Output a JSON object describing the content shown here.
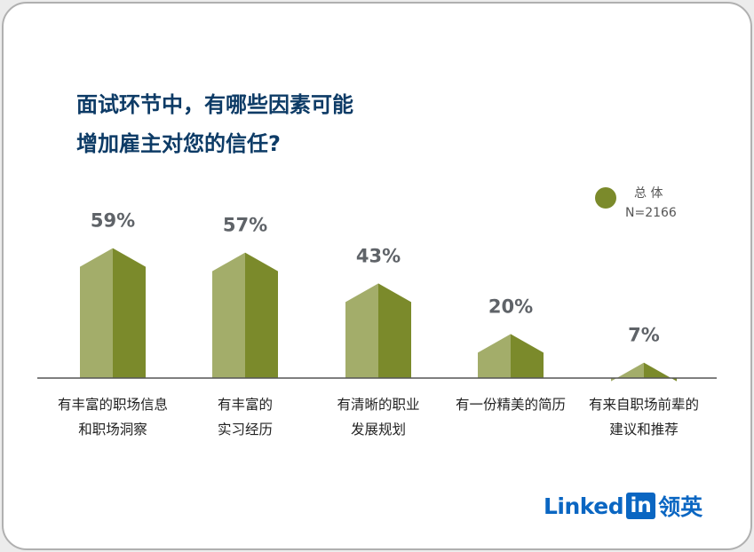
{
  "title": {
    "line1": "面试环节中，有哪些因素可能",
    "line2": "增加雇主对您的信任?"
  },
  "legend": {
    "name": "总 体",
    "n": "N=2166"
  },
  "colors": {
    "bar_light": "#a3ad6a",
    "bar_dark": "#7b8a2b",
    "title": "#0d3b66",
    "brand": "#0a66c2"
  },
  "chart_data": {
    "type": "bar",
    "title": "面试环节中，有哪些因素可能增加雇主对您的信任?",
    "categories": [
      [
        "有丰富的职场信息",
        "和职场洞察"
      ],
      [
        "有丰富的",
        "实习经历"
      ],
      [
        "有清晰的职业",
        "发展规划"
      ],
      [
        "有一份精美的简历"
      ],
      [
        "有来自职场前辈的",
        "建议和推荐"
      ]
    ],
    "series": [
      {
        "name": "总 体",
        "values": [
          59,
          57,
          43,
          20,
          7
        ]
      }
    ],
    "data_labels": [
      "59%",
      "57%",
      "43%",
      "20%",
      "7%"
    ],
    "ylim": [
      0,
      70
    ],
    "grid": false,
    "legend_position": "top-right"
  },
  "logo": {
    "word": "Linked",
    "in": "in",
    "cn": "领英"
  }
}
